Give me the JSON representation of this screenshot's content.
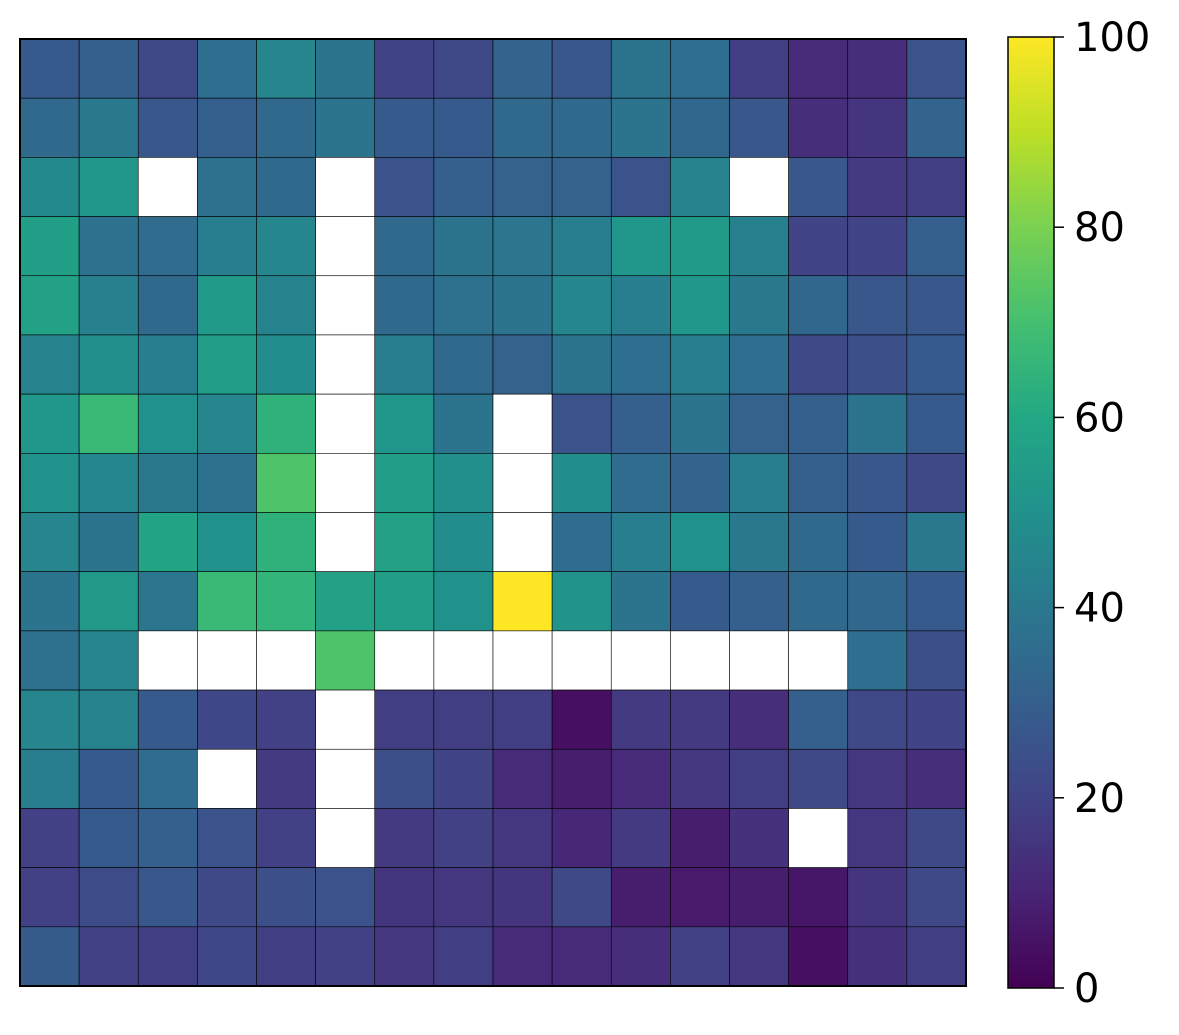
{
  "chart_data": {
    "type": "heatmap",
    "title": "",
    "xlabel": "",
    "ylabel": "",
    "colormap": "viridis",
    "missing_color": "#ffffff",
    "grid": true,
    "rows": 16,
    "cols": 16,
    "values": [
      [
        28,
        30,
        22,
        36,
        45,
        38,
        20,
        22,
        32,
        27,
        38,
        36,
        18,
        12,
        13,
        26
      ],
      [
        34,
        40,
        27,
        30,
        34,
        38,
        28,
        28,
        34,
        34,
        38,
        33,
        27,
        13,
        15,
        32
      ],
      [
        47,
        52,
        null,
        37,
        34,
        null,
        26,
        30,
        31,
        31,
        26,
        44,
        null,
        27,
        17,
        18
      ],
      [
        56,
        37,
        35,
        42,
        46,
        null,
        34,
        38,
        39,
        42,
        52,
        54,
        43,
        20,
        20,
        30
      ],
      [
        57,
        43,
        34,
        54,
        44,
        null,
        34,
        37,
        38,
        46,
        42,
        52,
        40,
        33,
        27,
        27
      ],
      [
        44,
        49,
        42,
        55,
        48,
        null,
        42,
        34,
        31,
        38,
        36,
        42,
        36,
        22,
        24,
        28
      ],
      [
        52,
        67,
        50,
        45,
        64,
        null,
        52,
        38,
        null,
        25,
        30,
        38,
        31,
        30,
        38,
        28
      ],
      [
        50,
        46,
        40,
        37,
        72,
        null,
        55,
        49,
        null,
        48,
        35,
        32,
        42,
        30,
        27,
        22
      ],
      [
        45,
        38,
        58,
        50,
        64,
        null,
        57,
        48,
        null,
        35,
        42,
        50,
        40,
        34,
        28,
        40
      ],
      [
        38,
        53,
        39,
        67,
        65,
        57,
        55,
        50,
        100,
        51,
        38,
        28,
        30,
        34,
        33,
        28
      ],
      [
        37,
        45,
        null,
        null,
        null,
        72,
        null,
        null,
        null,
        null,
        null,
        null,
        null,
        null,
        36,
        24
      ],
      [
        45,
        44,
        28,
        21,
        19,
        null,
        18,
        18,
        18,
        4,
        17,
        17,
        13,
        30,
        22,
        20
      ],
      [
        42,
        28,
        35,
        null,
        17,
        null,
        24,
        20,
        12,
        8,
        12,
        16,
        18,
        22,
        16,
        13
      ],
      [
        19,
        28,
        30,
        25,
        19,
        null,
        17,
        19,
        16,
        11,
        17,
        8,
        14,
        null,
        16,
        22
      ],
      [
        19,
        23,
        27,
        22,
        24,
        25,
        15,
        16,
        15,
        22,
        8,
        7,
        8,
        6,
        15,
        22
      ],
      [
        29,
        19,
        18,
        21,
        18,
        19,
        16,
        18,
        12,
        12,
        13,
        19,
        16,
        4,
        14,
        18
      ]
    ],
    "colorbar": {
      "min": 0,
      "max": 100,
      "ticks": [
        0,
        20,
        40,
        60,
        80,
        100
      ],
      "tick_labels": [
        "0",
        "20",
        "40",
        "60",
        "80",
        "100"
      ]
    }
  }
}
